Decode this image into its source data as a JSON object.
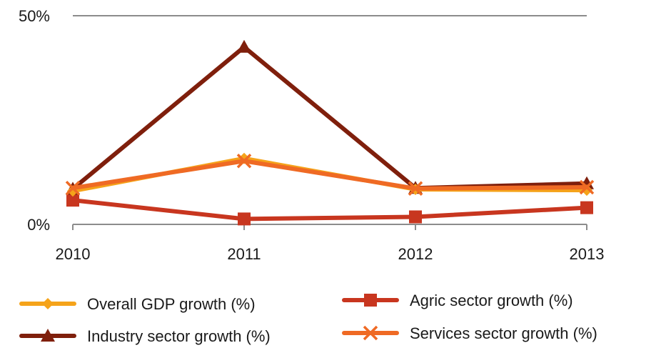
{
  "chart_data": {
    "type": "line",
    "categories": [
      "2010",
      "2011",
      "2012",
      "2013"
    ],
    "ylim": [
      0,
      50
    ],
    "yticks": [
      {
        "value": 0,
        "label": "0%"
      },
      {
        "value": 50,
        "label": "50%"
      }
    ],
    "grid": "horizontal-top-only",
    "legend_position": "bottom",
    "series": [
      {
        "name": "Overall GDP growth (%)",
        "values": [
          8.0,
          15.8,
          8.4,
          8.2
        ],
        "color": "#F5A31A",
        "marker": "diamond"
      },
      {
        "name": "Agric sector growth (%)",
        "values": [
          5.8,
          1.3,
          1.8,
          4.0
        ],
        "color": "#C8361F",
        "marker": "square"
      },
      {
        "name": "Industry sector growth (%)",
        "values": [
          8.5,
          42.5,
          8.7,
          9.8
        ],
        "color": "#7F1F0C",
        "marker": "triangle"
      },
      {
        "name": "Services sector growth (%)",
        "values": [
          8.7,
          15.2,
          8.6,
          8.9
        ],
        "color": "#EF6A24",
        "marker": "x"
      }
    ]
  }
}
